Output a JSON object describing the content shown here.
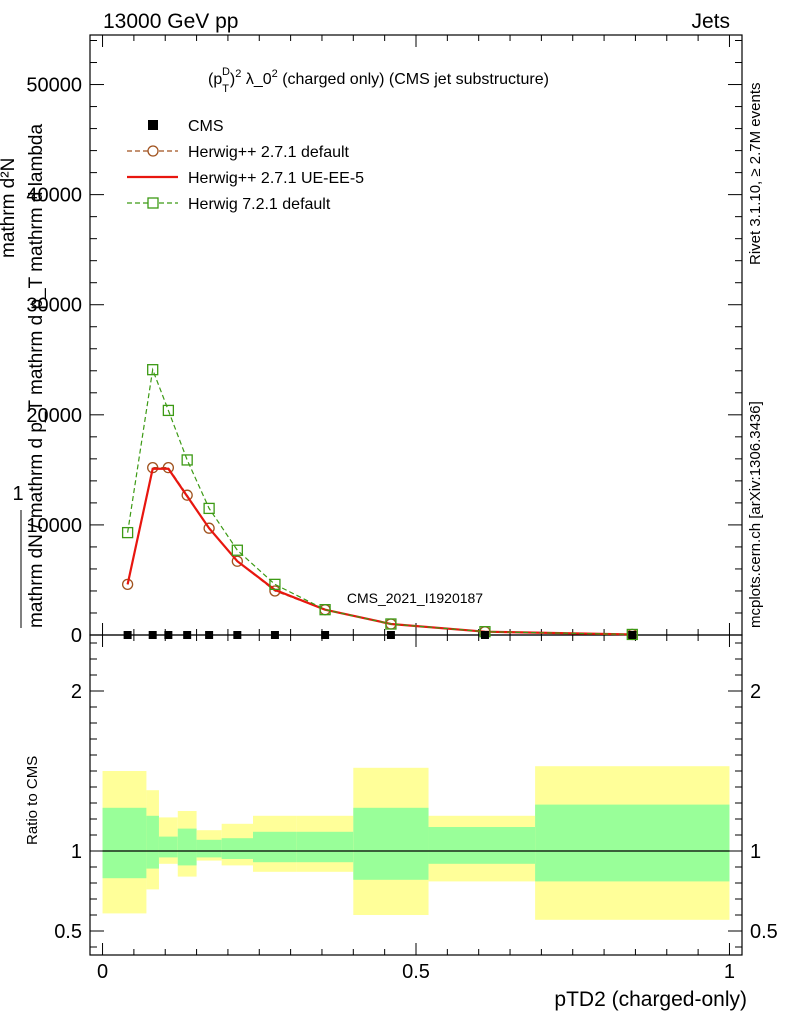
{
  "header": {
    "left": "13000 GeV pp",
    "right": "Jets"
  },
  "side_texts": {
    "rivet": "Rivet 3.1.10, ≥ 2.7M events",
    "mcplots": "mcplots.cern.ch [arXiv:1306.3436]"
  },
  "watermark": "CMS_2021_I1920187",
  "plot_title": {
    "base": "(p",
    "sub1": "T",
    "sup1": "D",
    "mid": ")",
    "sup2": "2",
    "rest": " λ_0",
    "sup3": "2",
    "tail": " (charged only) (CMS jet substructure)"
  },
  "ylabel_main": {
    "line1": "1",
    "line2": "mathrm dN / mathrm d p_T mathrm d p_T mathrm d lambda",
    "line3": "mathrm d²N",
    "sub": "T"
  },
  "ylabel_ratio": "Ratio to CMS",
  "xlabel": "pTD2 (charged-only)",
  "legend": [
    {
      "label": "CMS",
      "color": "#000000",
      "marker": "square-filled",
      "line": "none"
    },
    {
      "label": "Herwig++ 2.7.1 default",
      "color": "#a0521e",
      "marker": "circle-open",
      "line": "dashed"
    },
    {
      "label": "Herwig++ 2.7.1 UE-EE-5",
      "color": "#e8160f",
      "marker": "none",
      "line": "solid"
    },
    {
      "label": "Herwig 7.2.1 default",
      "color": "#3c9a14",
      "marker": "square-open",
      "line": "dashed"
    }
  ],
  "chart_data": {
    "type": "line",
    "xlim": [
      -0.02,
      1.02
    ],
    "ylim_main": [
      0,
      54500
    ],
    "ylim_ratio": [
      0.35,
      2.35
    ],
    "xticks": [
      0,
      0.5,
      1
    ],
    "xtick_labels": [
      "0",
      "0.5",
      "1"
    ],
    "yticks_main": [
      0,
      10000,
      20000,
      30000,
      40000,
      50000
    ],
    "ytick_labels_main": [
      "0",
      "10000",
      "20000",
      "30000",
      "40000",
      "50000"
    ],
    "yticks_ratio": [
      0.5,
      1,
      2
    ],
    "ytick_labels_ratio": [
      "0.5",
      "1",
      "2"
    ],
    "cms": {
      "x": [
        0.04,
        0.08,
        0.105,
        0.135,
        0.17,
        0.215,
        0.275,
        0.355,
        0.46,
        0.61,
        0.845
      ],
      "y": [
        0,
        0,
        0,
        0,
        0,
        0,
        0,
        0,
        0,
        0,
        0
      ]
    },
    "series": [
      {
        "name": "Herwig++ 2.7.1 default",
        "color": "#a0521e",
        "style": "dashed",
        "marker": "circle",
        "x": [
          0.04,
          0.08,
          0.105,
          0.135,
          0.17,
          0.215,
          0.275,
          0.355,
          0.46,
          0.61,
          0.845
        ],
        "y": [
          4600,
          15200,
          15200,
          12700,
          9700,
          6700,
          4000,
          2300,
          1000,
          300,
          50
        ]
      },
      {
        "name": "Herwig++ 2.7.1 UE-EE-5",
        "color": "#e8160f",
        "style": "solid",
        "marker": "none",
        "x": [
          0.04,
          0.08,
          0.105,
          0.135,
          0.17,
          0.215,
          0.275,
          0.355,
          0.46,
          0.61,
          0.845
        ],
        "y": [
          4600,
          15100,
          15100,
          12600,
          9700,
          6700,
          4100,
          2300,
          1000,
          300,
          50
        ]
      },
      {
        "name": "Herwig 7.2.1 default",
        "color": "#3c9a14",
        "style": "dashed",
        "marker": "square",
        "x": [
          0.04,
          0.08,
          0.105,
          0.135,
          0.17,
          0.215,
          0.275,
          0.355,
          0.46,
          0.61,
          0.845
        ],
        "y": [
          9300,
          24100,
          20400,
          15900,
          11500,
          7700,
          4600,
          2300,
          1000,
          300,
          50
        ]
      }
    ],
    "ratio_bands": [
      {
        "x0": 0.0,
        "x1": 0.07,
        "yellow": [
          0.61,
          1.5
        ],
        "green": [
          0.83,
          1.27
        ]
      },
      {
        "x0": 0.07,
        "x1": 0.09,
        "yellow": [
          0.76,
          1.38
        ],
        "green": [
          0.89,
          1.22
        ]
      },
      {
        "x0": 0.09,
        "x1": 0.12,
        "yellow": [
          0.92,
          1.21
        ],
        "green": [
          0.96,
          1.09
        ]
      },
      {
        "x0": 0.12,
        "x1": 0.15,
        "yellow": [
          0.84,
          1.25
        ],
        "green": [
          0.91,
          1.14
        ]
      },
      {
        "x0": 0.15,
        "x1": 0.19,
        "yellow": [
          0.94,
          1.13
        ],
        "green": [
          0.96,
          1.07
        ]
      },
      {
        "x0": 0.19,
        "x1": 0.24,
        "yellow": [
          0.91,
          1.17
        ],
        "green": [
          0.95,
          1.08
        ]
      },
      {
        "x0": 0.24,
        "x1": 0.31,
        "yellow": [
          0.87,
          1.22
        ],
        "green": [
          0.93,
          1.12
        ]
      },
      {
        "x0": 0.31,
        "x1": 0.4,
        "yellow": [
          0.87,
          1.22
        ],
        "green": [
          0.93,
          1.12
        ]
      },
      {
        "x0": 0.4,
        "x1": 0.52,
        "yellow": [
          0.6,
          1.52
        ],
        "green": [
          0.82,
          1.27
        ]
      },
      {
        "x0": 0.52,
        "x1": 0.69,
        "yellow": [
          0.81,
          1.22
        ],
        "green": [
          0.92,
          1.15
        ]
      },
      {
        "x0": 0.69,
        "x1": 1.0,
        "yellow": [
          0.57,
          1.53
        ],
        "green": [
          0.81,
          1.29
        ]
      }
    ],
    "colors": {
      "band_yellow": "#ffff99",
      "band_green": "#99ff99",
      "reference_line": "#000000"
    }
  }
}
